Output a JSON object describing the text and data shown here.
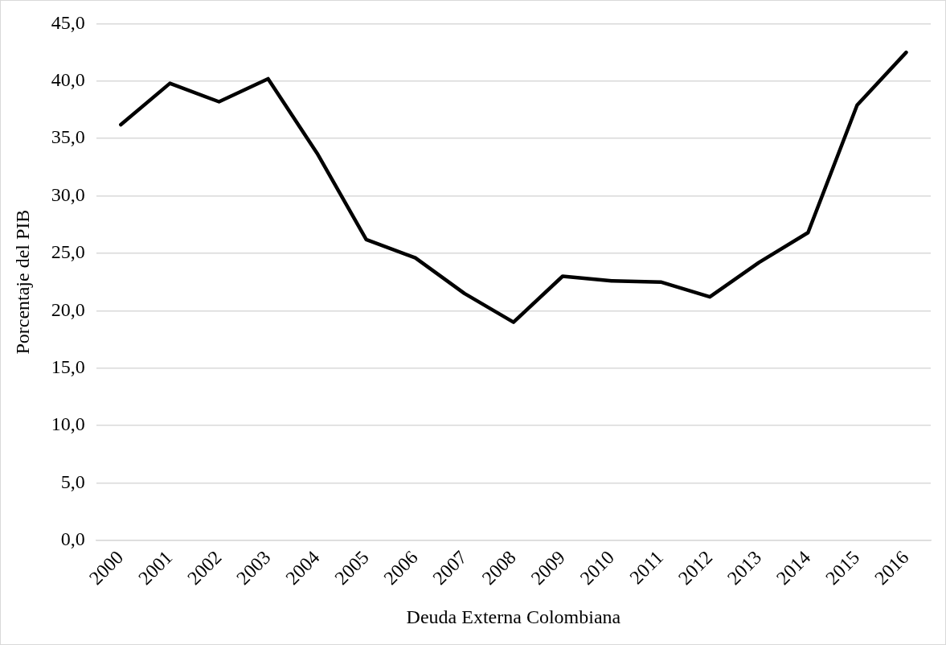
{
  "chart_data": {
    "type": "line",
    "xlabel": "Deuda Externa Colombiana",
    "ylabel": "Porcentaje del PIB",
    "categories": [
      "2000",
      "2001",
      "2002",
      "2003",
      "2004",
      "2005",
      "2006",
      "2007",
      "2008",
      "2009",
      "2010",
      "2011",
      "2012",
      "2013",
      "2014",
      "2015",
      "2016"
    ],
    "series": [
      {
        "color": "#000000",
        "values": [
          36.2,
          39.8,
          38.2,
          40.2,
          33.7,
          26.2,
          24.6,
          21.5,
          19.0,
          23.0,
          22.6,
          22.5,
          21.2,
          24.2,
          26.8,
          37.9,
          42.5
        ]
      }
    ],
    "ylim": [
      0,
      45
    ],
    "yticks": [
      {
        "value": 0,
        "label": "0,0"
      },
      {
        "value": 5,
        "label": "5,0"
      },
      {
        "value": 10,
        "label": "10,0"
      },
      {
        "value": 15,
        "label": "15,0"
      },
      {
        "value": 20,
        "label": "20,0"
      },
      {
        "value": 25,
        "label": "25,0"
      },
      {
        "value": 30,
        "label": "30,0"
      },
      {
        "value": 35,
        "label": "35,0"
      },
      {
        "value": 40,
        "label": "40,0"
      },
      {
        "value": 45,
        "label": "45,0"
      }
    ],
    "grid": "y",
    "legend": false,
    "marker": "none",
    "line_style": "solid"
  }
}
